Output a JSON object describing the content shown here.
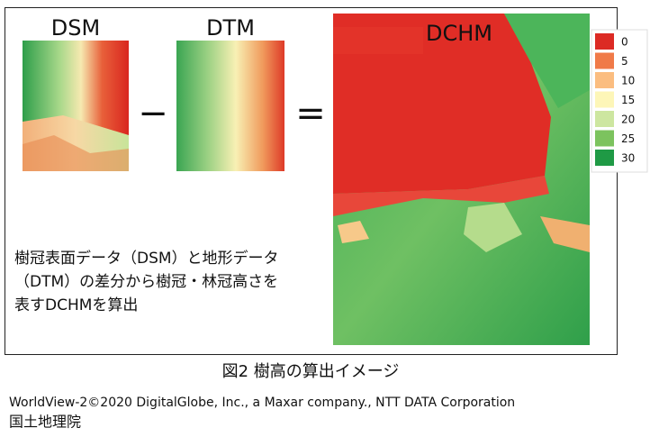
{
  "panels": {
    "dsm": {
      "label": "DSM"
    },
    "dtm": {
      "label": "DTM"
    },
    "dchm": {
      "label": "DCHM"
    }
  },
  "operators": {
    "minus": "−",
    "equals": "="
  },
  "legend": [
    {
      "label": "0",
      "color": "#dc2a24"
    },
    {
      "label": "5",
      "color": "#f07a48"
    },
    {
      "label": "10",
      "color": "#fbbd80"
    },
    {
      "label": "15",
      "color": "#fdf6b8"
    },
    {
      "label": "20",
      "color": "#cde6a0"
    },
    {
      "label": "25",
      "color": "#7cc35e"
    },
    {
      "label": "30",
      "color": "#1f9a45"
    }
  ],
  "description": [
    "樹冠表面データ（DSM）と地形データ",
    "（DTM）の差分から樹冠・林冠高さを",
    "表すDCHMを算出"
  ],
  "caption": "図2 樹高の算出イメージ",
  "credits": [
    "WorldView-2©2020 DigitalGlobe, Inc., a Maxar company., NTT DATA Corporation",
    "国土地理院"
  ]
}
